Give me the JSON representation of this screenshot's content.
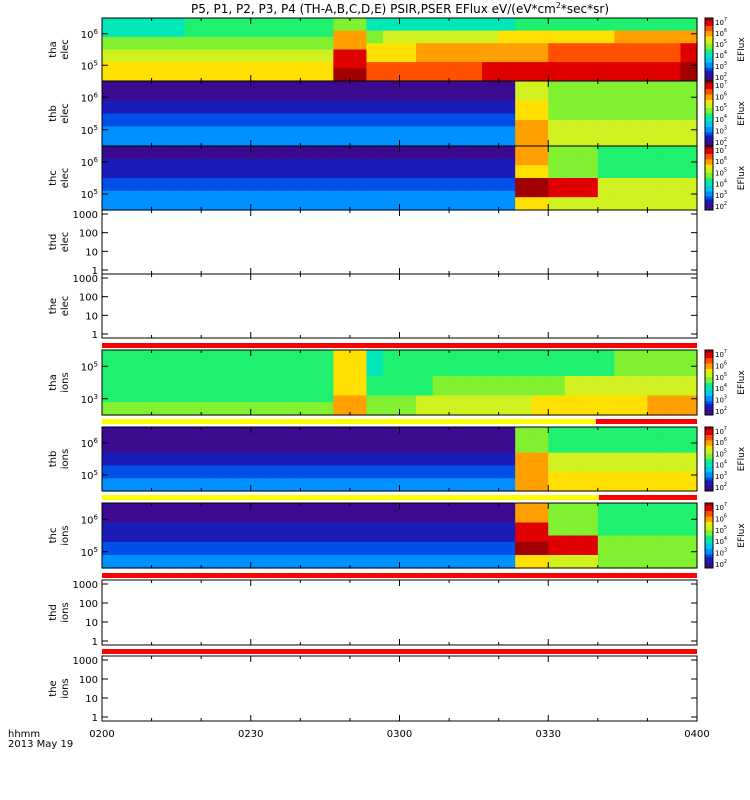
{
  "title": {
    "prefix": "P5, P1, P2, P3, P4 (TH-A,B,C,D,E) PSIR,PSER EFlux eV/(eV*cm",
    "sup1": "2",
    "suffix": "*sec*sr)"
  },
  "colorbar": {
    "label": "EFlux",
    "tick_labels": [
      "10",
      "10",
      "10",
      "10",
      "10",
      "10"
    ],
    "tick_exps": [
      "7",
      "6",
      "5",
      "4",
      "3",
      "2"
    ]
  },
  "x_axis": {
    "ticks": [
      "0200",
      "0230",
      "0300",
      "0330",
      "0400"
    ],
    "unit_label": "hhmm",
    "date_label": "2013 May 19"
  },
  "chart_data": {
    "type": "heatmap",
    "x_range": [
      "02:00",
      "04:00"
    ],
    "panels": [
      {
        "id": "tha-elec",
        "label": [
          "tha",
          "elec"
        ],
        "scale": "log",
        "has_data": true,
        "y_ticks": [
          {
            "label": "10",
            "exp": "5"
          },
          {
            "label": "10",
            "exp": "6"
          }
        ],
        "colorbar": true
      },
      {
        "id": "thb-elec",
        "label": [
          "thb",
          "elec"
        ],
        "scale": "log",
        "has_data": true,
        "y_ticks": [
          {
            "label": "10",
            "exp": "5"
          },
          {
            "label": "10",
            "exp": "6"
          }
        ],
        "colorbar": true
      },
      {
        "id": "thc-elec",
        "label": [
          "thc",
          "elec"
        ],
        "scale": "log",
        "has_data": true,
        "y_ticks": [
          {
            "label": "10",
            "exp": "5"
          },
          {
            "label": "10",
            "exp": "6"
          }
        ],
        "colorbar": true
      },
      {
        "id": "thd-elec",
        "label": [
          "thd",
          "elec"
        ],
        "scale": "log",
        "has_data": false,
        "y_ticks": [
          {
            "label": "1000"
          },
          {
            "label": "100"
          },
          {
            "label": "10"
          },
          {
            "label": "1"
          }
        ],
        "colorbar": false
      },
      {
        "id": "the-elec",
        "label": [
          "the",
          "elec"
        ],
        "scale": "log",
        "has_data": false,
        "y_ticks": [
          {
            "label": "1000"
          },
          {
            "label": "100"
          },
          {
            "label": "10"
          },
          {
            "label": "1"
          }
        ],
        "colorbar": false
      },
      {
        "id": "tha-ions",
        "label": [
          "tha",
          "ions"
        ],
        "scale": "log",
        "has_data": true,
        "y_ticks": [
          {
            "label": "10",
            "exp": "3"
          },
          {
            "label": "10",
            "exp": "5"
          }
        ],
        "colorbar": true
      },
      {
        "id": "thb-ions",
        "label": [
          "thb",
          "ions"
        ],
        "scale": "log",
        "has_data": true,
        "y_ticks": [
          {
            "label": "10",
            "exp": "5"
          },
          {
            "label": "10",
            "exp": "6"
          }
        ],
        "colorbar": true
      },
      {
        "id": "thc-ions",
        "label": [
          "thc",
          "ions"
        ],
        "scale": "log",
        "has_data": true,
        "y_ticks": [
          {
            "label": "10",
            "exp": "5"
          },
          {
            "label": "10",
            "exp": "6"
          }
        ],
        "colorbar": true
      },
      {
        "id": "thd-ions",
        "label": [
          "thd",
          "ions"
        ],
        "scale": "log",
        "has_data": false,
        "y_ticks": [
          {
            "label": "1000"
          },
          {
            "label": "100"
          },
          {
            "label": "10"
          },
          {
            "label": "1"
          }
        ],
        "colorbar": false
      },
      {
        "id": "the-ions",
        "label": [
          "the",
          "ions"
        ],
        "scale": "log",
        "has_data": false,
        "y_ticks": [
          {
            "label": "1000"
          },
          {
            "label": "100"
          },
          {
            "label": "10"
          },
          {
            "label": "1"
          }
        ],
        "colorbar": false
      }
    ],
    "mode_bars": [
      {
        "segments": [
          {
            "color": "#ff0000",
            "start": 0.0,
            "end": 1.0
          }
        ]
      },
      {
        "segments": [
          {
            "color": "#ffff00",
            "start": 0.0,
            "end": 0.83
          },
          {
            "color": "#ff0000",
            "start": 0.83,
            "end": 1.0
          }
        ]
      },
      {
        "segments": [
          {
            "color": "#ffff00",
            "start": 0.0,
            "end": 0.835
          },
          {
            "color": "#ff0000",
            "start": 0.835,
            "end": 1.0
          }
        ]
      },
      {
        "segments": [
          {
            "color": "#ff0000",
            "start": 0.0,
            "end": 1.0
          }
        ]
      },
      {
        "segments": [
          {
            "color": "#ff0000",
            "start": 0.0,
            "end": 1.0
          }
        ]
      }
    ]
  }
}
